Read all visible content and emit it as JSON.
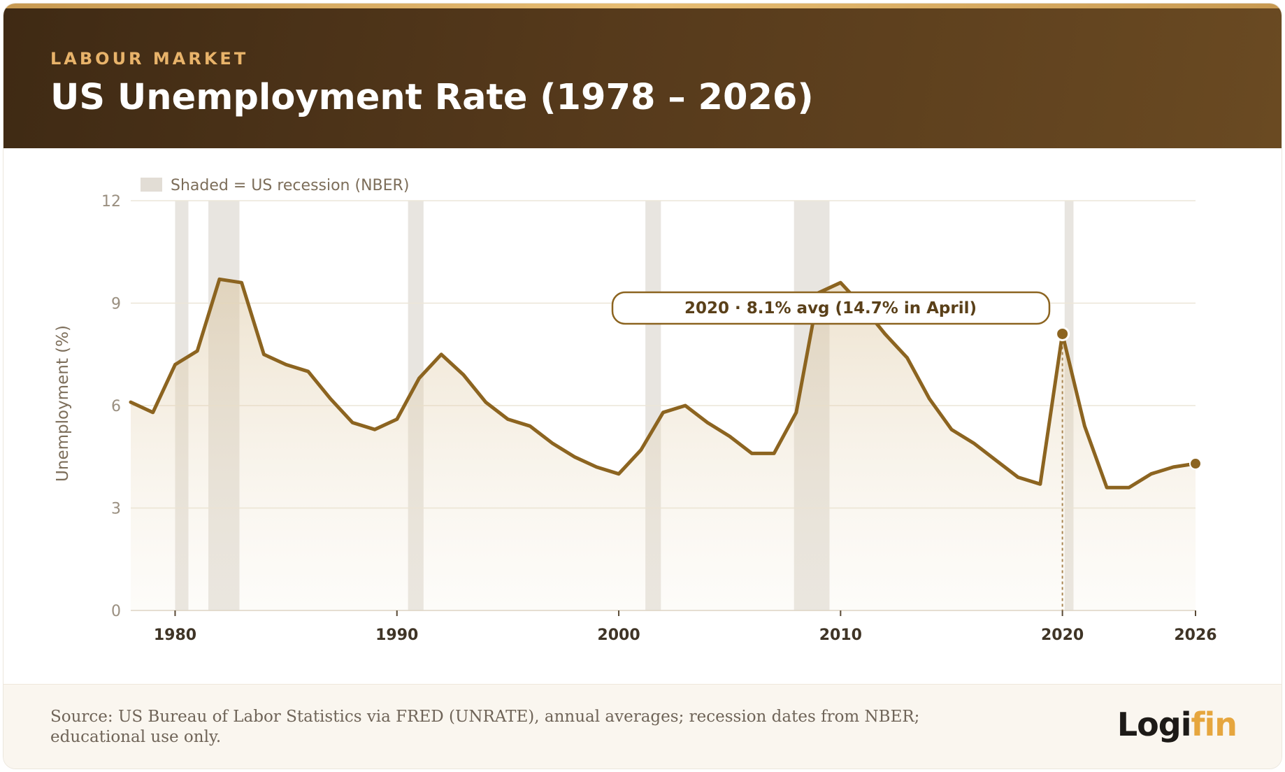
{
  "header": {
    "eyebrow": "LABOUR MARKET",
    "title": "US Unemployment Rate (1978 – 2026)"
  },
  "chart_data": {
    "type": "line",
    "title": "US Unemployment Rate (1978 – 2026)",
    "xlabel": "",
    "ylabel": "Unemployment (%)",
    "xlim": [
      1978,
      2026
    ],
    "ylim": [
      0,
      12
    ],
    "x_ticks": [
      1980,
      1990,
      2000,
      2010,
      2020,
      2026
    ],
    "y_ticks": [
      0,
      3,
      6,
      9,
      12
    ],
    "grid": true,
    "legend": {
      "label": "Shaded = US recession (NBER)",
      "placement": "top-left"
    },
    "recessions": [
      [
        1980.0,
        1980.6
      ],
      [
        1981.5,
        1982.9
      ],
      [
        1990.5,
        1991.2
      ],
      [
        2001.2,
        2001.9
      ],
      [
        2007.9,
        2009.5
      ],
      [
        2020.1,
        2020.5
      ]
    ],
    "series": [
      {
        "x": [
          1978,
          1979,
          1980,
          1981,
          1982,
          1983,
          1984,
          1985,
          1986,
          1987,
          1988,
          1989,
          1990,
          1991,
          1992,
          1993,
          1994,
          1995,
          1996,
          1997,
          1998,
          1999,
          2000,
          2001,
          2002,
          2003,
          2004,
          2005,
          2006,
          2007,
          2008,
          2009,
          2010,
          2011,
          2012,
          2013,
          2014,
          2015,
          2016,
          2017,
          2018,
          2019,
          2020,
          2021,
          2022,
          2023,
          2024,
          2025,
          2026
        ],
        "y": [
          6.1,
          5.8,
          7.2,
          7.6,
          9.7,
          9.6,
          7.5,
          7.2,
          7.0,
          6.2,
          5.5,
          5.3,
          5.6,
          6.8,
          7.5,
          6.9,
          6.1,
          5.6,
          5.4,
          4.9,
          4.5,
          4.2,
          4.0,
          4.7,
          5.8,
          6.0,
          5.5,
          5.1,
          4.6,
          4.6,
          5.8,
          9.3,
          9.6,
          8.9,
          8.1,
          7.4,
          6.2,
          5.3,
          4.9,
          4.4,
          3.9,
          3.7,
          8.1,
          5.4,
          3.6,
          3.6,
          4.0,
          4.2,
          4.3
        ]
      }
    ],
    "annotation": {
      "x": 2020,
      "y": 8.1,
      "text": "2020 · 8.1% avg (14.7% in April)"
    },
    "colors": {
      "line": "#8c6420",
      "recession": "#e8e5e0",
      "grid": "#ece6d8"
    }
  },
  "footer": {
    "source": "Source: US Bureau of Labor Statistics via FRED (UNRATE), annual averages; recession dates from NBER; educational use only.",
    "logo_main": "Logi",
    "logo_accent": "fin"
  }
}
